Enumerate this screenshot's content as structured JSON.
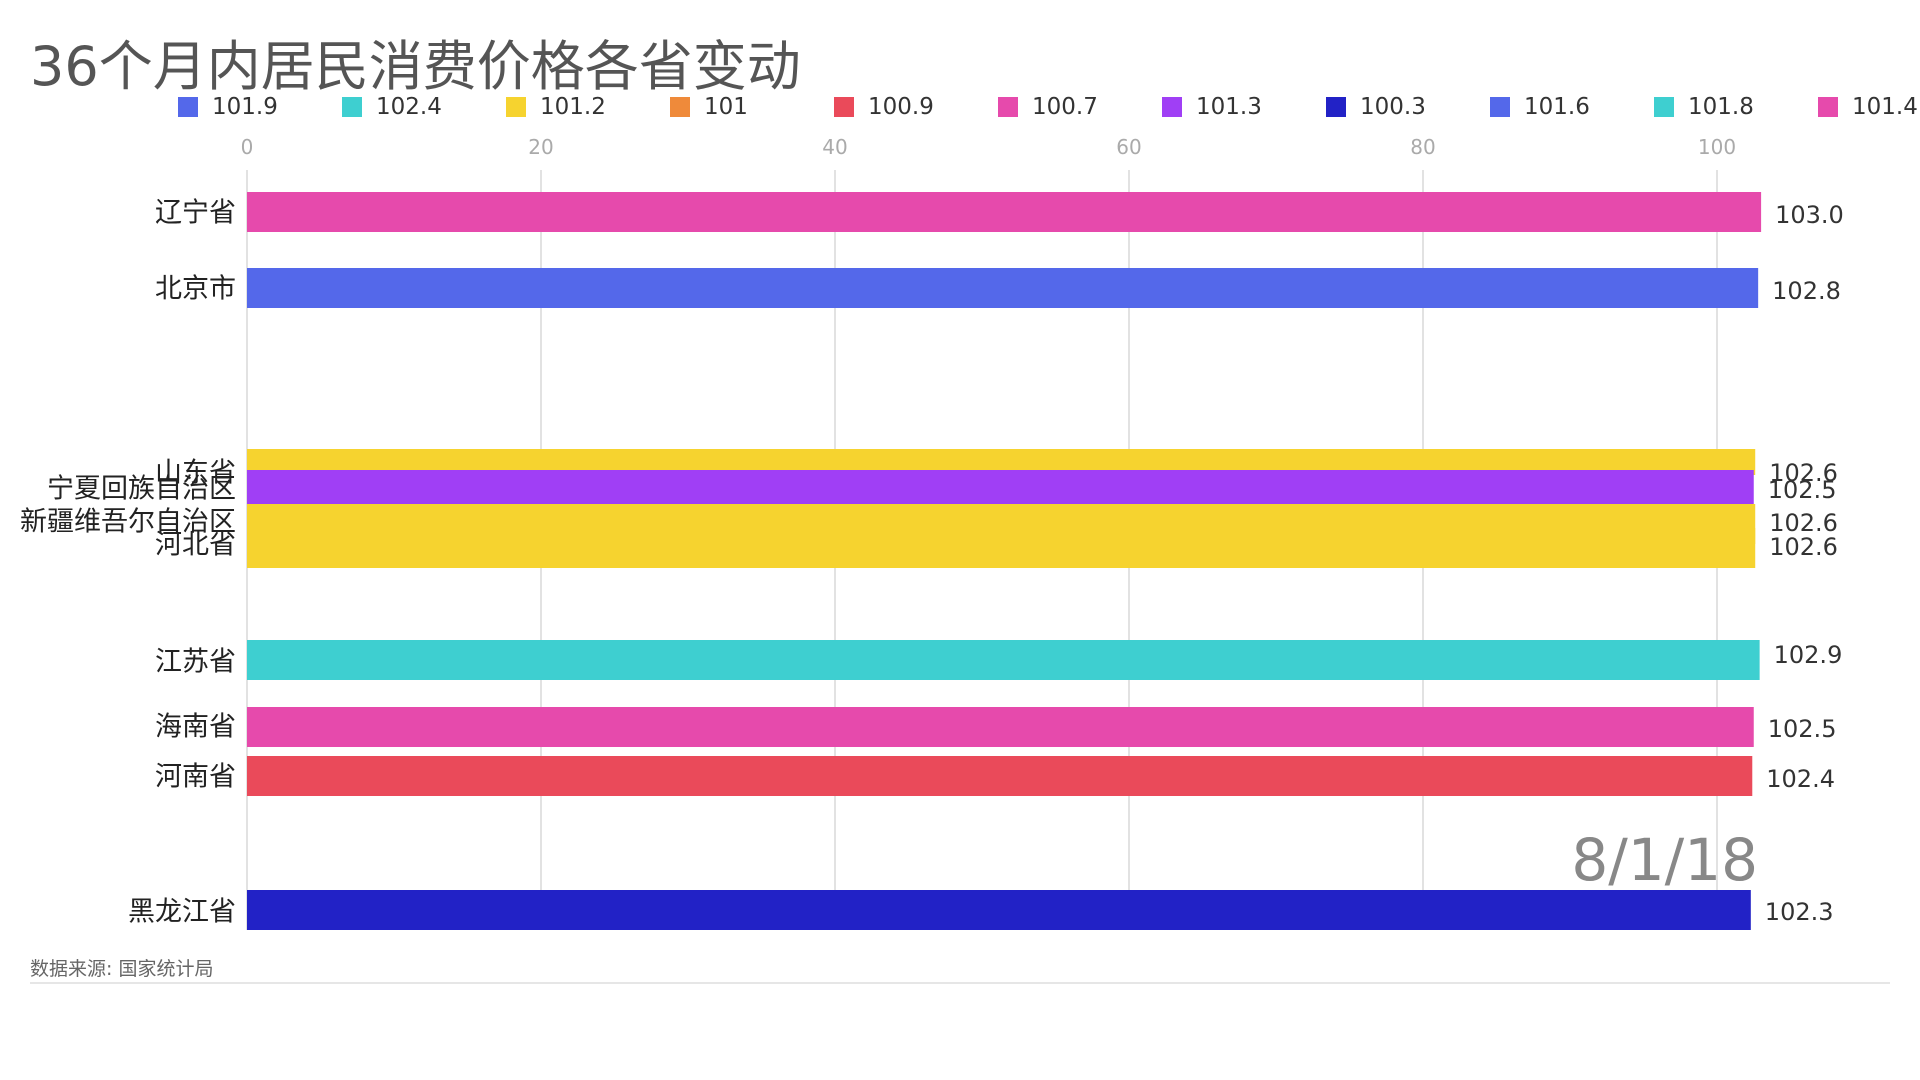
{
  "title": "36个月内居民消费价格各省变动",
  "source": "数据来源: 国家统计局",
  "date_label": "8/1/18",
  "legend": [
    {
      "label": "101.9",
      "color": "#5468ea"
    },
    {
      "label": "102.4",
      "color": "#3ecfd0"
    },
    {
      "label": "101.2",
      "color": "#f6d32f"
    },
    {
      "label": "101",
      "color": "#ef8a3a"
    },
    {
      "label": "100.9",
      "color": "#ea4a5a"
    },
    {
      "label": "100.7",
      "color": "#e64aac"
    },
    {
      "label": "101.3",
      "color": "#a03ff5"
    },
    {
      "label": "100.3",
      "color": "#2222c6"
    },
    {
      "label": "101.6",
      "color": "#5468ea"
    },
    {
      "label": "101.8",
      "color": "#3ecfd0"
    },
    {
      "label": "101.4",
      "color": "#e64aac"
    }
  ],
  "chart_data": {
    "type": "bar",
    "orientation": "horizontal",
    "title": "36个月内居民消费价格各省变动",
    "xlim": [
      0,
      103
    ],
    "x_ticks": [
      "0",
      "20",
      "40",
      "60",
      "80",
      "100"
    ],
    "grid": true,
    "legend_position": "top",
    "categories": [
      "辽宁省",
      "北京市",
      "山东省",
      "宁夏回族自治区",
      "新疆维吾尔自治区",
      "河北省",
      "江苏省",
      "海南省",
      "河南省",
      "黑龙江省"
    ],
    "values": [
      103.0,
      102.8,
      102.6,
      102.5,
      102.6,
      102.6,
      102.9,
      102.5,
      102.4,
      102.3
    ],
    "value_labels": [
      "103.0",
      "102.8",
      "102.6",
      "102.5",
      "102.6",
      "102.6",
      "102.9",
      "102.5",
      "102.4",
      "102.3"
    ],
    "colors": [
      "#e64aac",
      "#5468ea",
      "#f6d32f",
      "#a03ff5",
      "#f6d32f",
      "#f6d32f",
      "#3ecfd0",
      "#e64aac",
      "#ea4a5a",
      "#2222c6"
    ]
  }
}
